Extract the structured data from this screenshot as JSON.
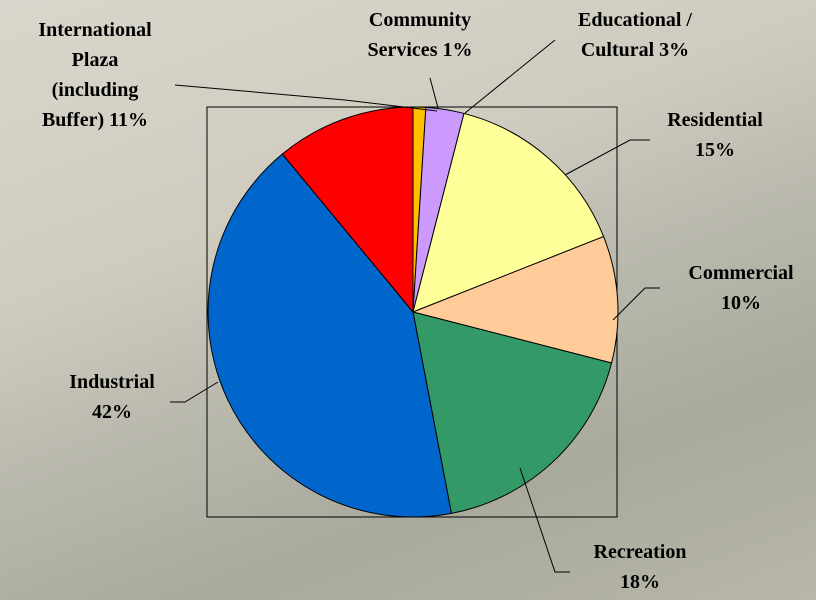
{
  "chart_data": {
    "type": "pie",
    "categories": [
      "Community Services",
      "Educational / Cultural",
      "Residential",
      "Commercial",
      "Recreation",
      "Industrial",
      "International Plaza (including Buffer)"
    ],
    "values": [
      1,
      3,
      15,
      10,
      18,
      42,
      11
    ],
    "value_labels": [
      "1%",
      "3%",
      "15%",
      "10%",
      "18%",
      "42%",
      "11%"
    ],
    "colors": [
      "#ffc000",
      "#cc99ff",
      "#ffff99",
      "#ffcc99",
      "#339966",
      "#0066cc",
      "#ff0000"
    ]
  }
}
